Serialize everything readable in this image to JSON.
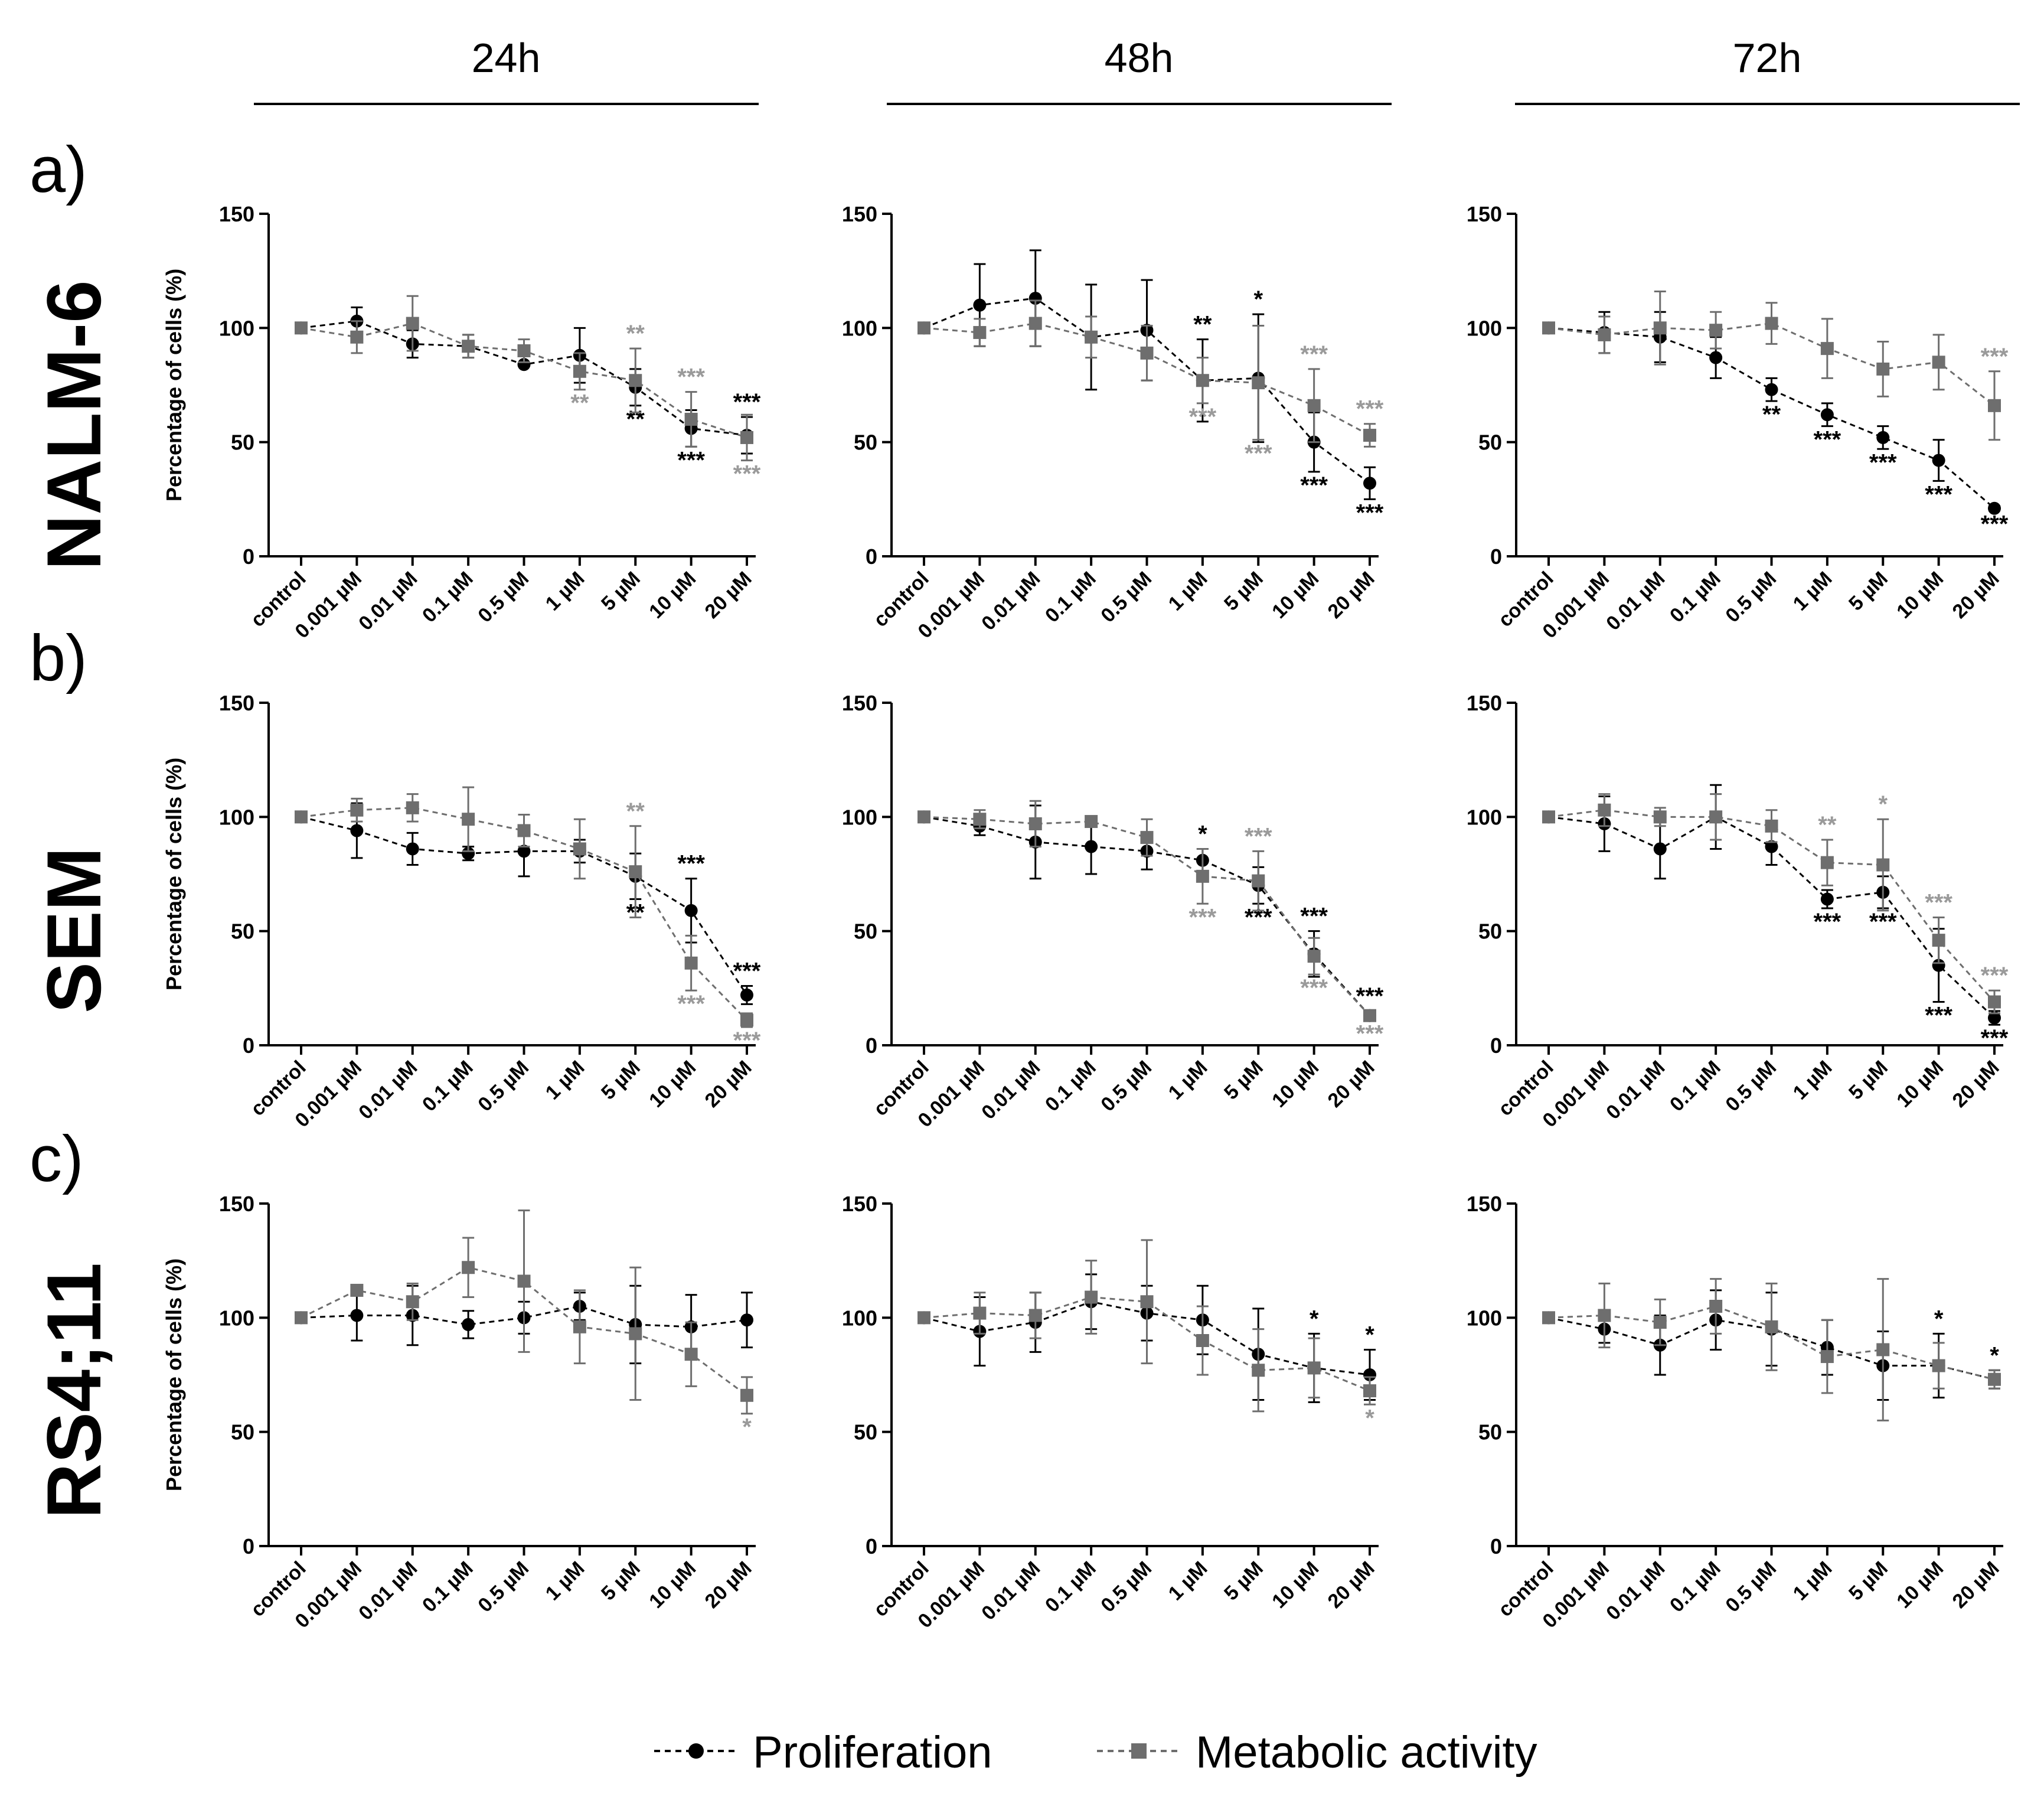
{
  "figure": {
    "columns": [
      "24h",
      "48h",
      "72h"
    ],
    "rows": [
      {
        "letter": "a)",
        "name": "NALM-6"
      },
      {
        "letter": "b)",
        "name": "SEM"
      },
      {
        "letter": "c)",
        "name": "RS4;11"
      }
    ],
    "legend": {
      "proliferation": "Proliferation",
      "metabolic": "Metabolic activity"
    }
  },
  "colors": {
    "proliferation": "#000000",
    "metabolic": "#6e6e6e",
    "sig_metabolic": "#9a9a9a",
    "axis": "#000000"
  },
  "chart_data": [
    {
      "type": "line",
      "row": "NALM-6",
      "column": "24h",
      "ylabel": "Percentage of cells (%)",
      "ylim": [
        0,
        150
      ],
      "yticks": [
        0,
        50,
        100,
        150
      ],
      "categories": [
        "control",
        "0.001 µM",
        "0.01 µM",
        "0.1 µM",
        "0.5 µM",
        "1 µM",
        "5 µM",
        "10 µM",
        "20 µM"
      ],
      "series": [
        {
          "name": "Proliferation",
          "values": [
            100,
            103,
            93,
            92,
            84,
            88,
            74,
            56,
            53
          ],
          "err": [
            0,
            6,
            6,
            5,
            0,
            12,
            8,
            8,
            8
          ],
          "sig": [
            "",
            "",
            "",
            "",
            "",
            "",
            "**",
            "***",
            "***"
          ]
        },
        {
          "name": "Metabolic activity",
          "values": [
            100,
            96,
            102,
            92,
            90,
            81,
            77,
            60,
            52
          ],
          "err": [
            0,
            7,
            12,
            5,
            5,
            8,
            14,
            12,
            10
          ],
          "sig": [
            "",
            "",
            "",
            "",
            "",
            "**",
            "**",
            "***",
            "***"
          ]
        }
      ]
    },
    {
      "type": "line",
      "row": "NALM-6",
      "column": "48h",
      "ylabel": "Percentage of cells (%)",
      "ylim": [
        0,
        150
      ],
      "yticks": [
        0,
        50,
        100,
        150
      ],
      "categories": [
        "control",
        "0.001 µM",
        "0.01 µM",
        "0.1 µM",
        "0.5 µM",
        "1 µM",
        "5 µM",
        "10 µM",
        "20 µM"
      ],
      "series": [
        {
          "name": "Proliferation",
          "values": [
            100,
            110,
            113,
            96,
            99,
            77,
            78,
            50,
            32
          ],
          "err": [
            0,
            18,
            21,
            23,
            22,
            18,
            28,
            13,
            7
          ],
          "sig": [
            "",
            "",
            "",
            "",
            "",
            "**",
            "*",
            "***",
            "***"
          ]
        },
        {
          "name": "Metabolic activity",
          "values": [
            100,
            98,
            102,
            96,
            89,
            77,
            76,
            66,
            53
          ],
          "err": [
            0,
            6,
            10,
            9,
            12,
            10,
            25,
            16,
            5
          ],
          "sig": [
            "",
            "",
            "",
            "",
            "",
            "***",
            "***",
            "***",
            "***"
          ]
        }
      ]
    },
    {
      "type": "line",
      "row": "NALM-6",
      "column": "72h",
      "ylabel": "Percentage of cells (%)",
      "ylim": [
        0,
        150
      ],
      "yticks": [
        0,
        50,
        100,
        150
      ],
      "categories": [
        "control",
        "0.001 µM",
        "0.01 µM",
        "0.1 µM",
        "0.5 µM",
        "1 µM",
        "5 µM",
        "10 µM",
        "20 µM"
      ],
      "series": [
        {
          "name": "Proliferation",
          "values": [
            100,
            98,
            96,
            87,
            73,
            62,
            52,
            42,
            21
          ],
          "err": [
            0,
            9,
            11,
            9,
            5,
            5,
            5,
            9,
            1
          ],
          "sig": [
            "",
            "",
            "",
            "",
            "**",
            "***",
            "***",
            "***",
            "***"
          ]
        },
        {
          "name": "Metabolic activity",
          "values": [
            100,
            97,
            100,
            99,
            102,
            91,
            82,
            85,
            66
          ],
          "err": [
            0,
            8,
            16,
            8,
            9,
            13,
            12,
            12,
            15
          ],
          "sig": [
            "",
            "",
            "",
            "",
            "",
            "",
            "",
            "",
            "***"
          ]
        }
      ]
    },
    {
      "type": "line",
      "row": "SEM",
      "column": "24h",
      "ylabel": "Percentage of cells (%)",
      "ylim": [
        0,
        150
      ],
      "yticks": [
        0,
        50,
        100,
        150
      ],
      "categories": [
        "control",
        "0.001 µM",
        "0.01 µM",
        "0.1 µM",
        "0.5 µM",
        "1 µM",
        "5 µM",
        "10 µM",
        "20 µM"
      ],
      "series": [
        {
          "name": "Proliferation",
          "values": [
            100,
            94,
            86,
            84,
            85,
            85,
            74,
            59,
            22
          ],
          "err": [
            0,
            12,
            7,
            3,
            11,
            5,
            10,
            14,
            4
          ],
          "sig": [
            "",
            "",
            "",
            "",
            "",
            "",
            "**",
            "***",
            "***"
          ]
        },
        {
          "name": "Metabolic activity",
          "values": [
            100,
            103,
            104,
            99,
            94,
            86,
            76,
            36,
            11
          ],
          "err": [
            0,
            5,
            6,
            14,
            7,
            13,
            20,
            12,
            3
          ],
          "sig": [
            "",
            "",
            "",
            "",
            "",
            "",
            "**",
            "***",
            "***"
          ]
        }
      ]
    },
    {
      "type": "line",
      "row": "SEM",
      "column": "48h",
      "ylabel": "Percentage of cells (%)",
      "ylim": [
        0,
        150
      ],
      "yticks": [
        0,
        50,
        100,
        150
      ],
      "categories": [
        "control",
        "0.001 µM",
        "0.01 µM",
        "0.1 µM",
        "0.5 µM",
        "1 µM",
        "5 µM",
        "10 µM",
        "20 µM"
      ],
      "series": [
        {
          "name": "Proliferation",
          "values": [
            100,
            96,
            89,
            87,
            85,
            81,
            70,
            40,
            13
          ],
          "err": [
            0,
            4,
            16,
            12,
            8,
            5,
            8,
            10,
            2
          ],
          "sig": [
            "",
            "",
            "",
            "",
            "",
            "*",
            "***",
            "***",
            "***"
          ]
        },
        {
          "name": "Metabolic activity",
          "values": [
            100,
            99,
            97,
            98,
            91,
            74,
            72,
            39,
            13
          ],
          "err": [
            0,
            4,
            10,
            2,
            8,
            12,
            13,
            8,
            2
          ],
          "sig": [
            "",
            "",
            "",
            "",
            "",
            "***",
            "***",
            "***",
            "***"
          ]
        }
      ]
    },
    {
      "type": "line",
      "row": "SEM",
      "column": "72h",
      "ylabel": "Percentage of cells (%)",
      "ylim": [
        0,
        150
      ],
      "yticks": [
        0,
        50,
        100,
        150
      ],
      "categories": [
        "control",
        "0.001 µM",
        "0.01 µM",
        "0.1 µM",
        "0.5 µM",
        "1 µM",
        "5 µM",
        "10 µM",
        "20 µM"
      ],
      "series": [
        {
          "name": "Proliferation",
          "values": [
            100,
            97,
            86,
            100,
            87,
            64,
            67,
            35,
            12
          ],
          "err": [
            0,
            12,
            13,
            14,
            8,
            4,
            7,
            16,
            3
          ],
          "sig": [
            "",
            "",
            "",
            "",
            "",
            "***",
            "***",
            "***",
            "***"
          ]
        },
        {
          "name": "Metabolic activity",
          "values": [
            100,
            103,
            100,
            100,
            96,
            80,
            79,
            46,
            19
          ],
          "err": [
            0,
            7,
            4,
            10,
            7,
            10,
            20,
            10,
            5
          ],
          "sig": [
            "",
            "",
            "",
            "",
            "",
            "**",
            "*",
            "***",
            "***"
          ]
        }
      ]
    },
    {
      "type": "line",
      "row": "RS4;11",
      "column": "24h",
      "ylabel": "Percentage of cells (%)",
      "ylim": [
        0,
        150
      ],
      "yticks": [
        0,
        50,
        100,
        150
      ],
      "categories": [
        "control",
        "0.001 µM",
        "0.01 µM",
        "0.1 µM",
        "0.5 µM",
        "1 µM",
        "5 µM",
        "10 µM",
        "20 µM"
      ],
      "series": [
        {
          "name": "Proliferation",
          "values": [
            100,
            101,
            101,
            97,
            100,
            105,
            97,
            96,
            99
          ],
          "err": [
            0,
            11,
            13,
            6,
            7,
            6,
            17,
            14,
            12
          ],
          "sig": [
            "",
            "",
            "",
            "",
            "",
            "",
            "",
            "",
            ""
          ]
        },
        {
          "name": "Metabolic activity",
          "values": [
            100,
            112,
            107,
            122,
            116,
            96,
            93,
            84,
            66
          ],
          "err": [
            0,
            0,
            8,
            13,
            31,
            16,
            29,
            14,
            8
          ],
          "sig": [
            "",
            "",
            "",
            "",
            "",
            "",
            "",
            "",
            "*"
          ]
        }
      ]
    },
    {
      "type": "line",
      "row": "RS4;11",
      "column": "48h",
      "ylabel": "Percentage of cells (%)",
      "ylim": [
        0,
        150
      ],
      "yticks": [
        0,
        50,
        100,
        150
      ],
      "categories": [
        "control",
        "0.001 µM",
        "0.01 µM",
        "0.1 µM",
        "0.5 µM",
        "1 µM",
        "5 µM",
        "10 µM",
        "20 µM"
      ],
      "series": [
        {
          "name": "Proliferation",
          "values": [
            100,
            94,
            98,
            107,
            102,
            99,
            84,
            78,
            75
          ],
          "err": [
            0,
            15,
            13,
            12,
            12,
            15,
            20,
            15,
            11
          ],
          "sig": [
            "",
            "",
            "",
            "",
            "",
            "",
            "",
            "*",
            "*"
          ]
        },
        {
          "name": "Metabolic activity",
          "values": [
            100,
            102,
            101,
            109,
            107,
            90,
            77,
            78,
            68
          ],
          "err": [
            0,
            9,
            10,
            16,
            27,
            15,
            18,
            13,
            6
          ],
          "sig": [
            "",
            "",
            "",
            "",
            "",
            "",
            "",
            "",
            "*"
          ]
        }
      ]
    },
    {
      "type": "line",
      "row": "RS4;11",
      "column": "72h",
      "ylabel": "Percentage of cells (%)",
      "ylim": [
        0,
        150
      ],
      "yticks": [
        0,
        50,
        100,
        150
      ],
      "categories": [
        "control",
        "0.001 µM",
        "0.01 µM",
        "0.1 µM",
        "0.5 µM",
        "1 µM",
        "5 µM",
        "10 µM",
        "20 µM"
      ],
      "series": [
        {
          "name": "Proliferation",
          "values": [
            100,
            95,
            88,
            99,
            95,
            87,
            79,
            79,
            73
          ],
          "err": [
            0,
            6,
            13,
            13,
            16,
            12,
            15,
            14,
            4
          ],
          "sig": [
            "",
            "",
            "",
            "",
            "",
            "",
            "",
            "*",
            "*"
          ]
        },
        {
          "name": "Metabolic activity",
          "values": [
            100,
            101,
            98,
            105,
            96,
            83,
            86,
            79,
            73
          ],
          "err": [
            0,
            14,
            10,
            12,
            19,
            16,
            31,
            10,
            4
          ],
          "sig": [
            "",
            "",
            "",
            "",
            "",
            "",
            "",
            "",
            ""
          ]
        }
      ]
    }
  ]
}
